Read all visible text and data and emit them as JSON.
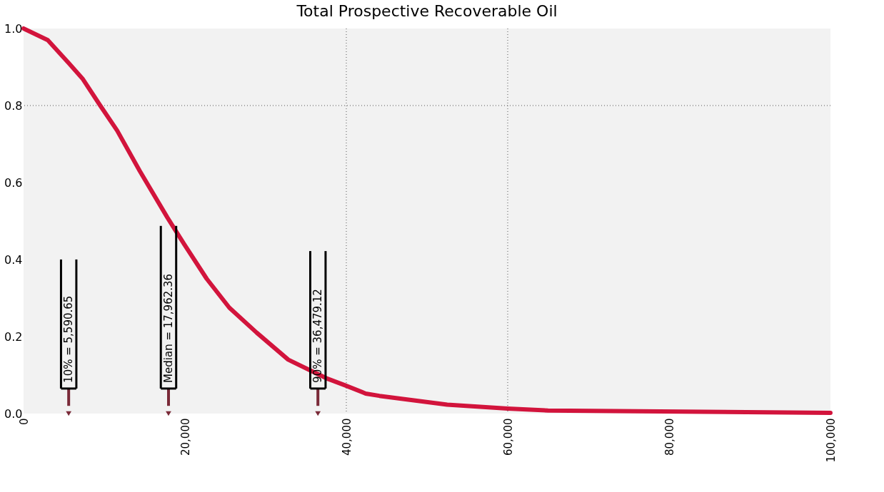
{
  "chart_data": {
    "type": "line",
    "title": "Total Prospective Recoverable Oil",
    "x": [
      0,
      3000,
      5600,
      7300,
      9500,
      11600,
      14400,
      17800,
      19900,
      22700,
      25500,
      28900,
      32800,
      37500,
      39900,
      42400,
      44100,
      52500,
      60000,
      65000,
      100000
    ],
    "series": [
      {
        "color": "#d2143c",
        "values": [
          1.0,
          0.97,
          0.91,
          0.87,
          0.8,
          0.735,
          0.63,
          0.51,
          0.44,
          0.35,
          0.275,
          0.21,
          0.14,
          0.092,
          0.073,
          0.052,
          0.046,
          0.023,
          0.013,
          0.008,
          0.002
        ]
      },
      {
        "type": "scatter",
        "marker": "triangle",
        "color": "#7a2a38",
        "x": [
          5590.65,
          17962.36,
          36479.12
        ],
        "values": [
          0,
          0,
          0
        ]
      }
    ],
    "xlim": [
      0,
      100000
    ],
    "ylim": [
      0,
      1
    ],
    "xticks": [
      {
        "value": 0,
        "label": "0"
      },
      {
        "value": 20000,
        "label": "20,000"
      },
      {
        "value": 40000,
        "label": "40,000"
      },
      {
        "value": 60000,
        "label": "60,000"
      },
      {
        "value": 80000,
        "label": "80,000"
      },
      {
        "value": 100000,
        "label": "100,000"
      }
    ],
    "yticks": [
      {
        "value": 0,
        "label": "0.0"
      },
      {
        "value": 0.2,
        "label": "0.2"
      },
      {
        "value": 0.4,
        "label": "0.4"
      },
      {
        "value": 0.6,
        "label": "0.6"
      },
      {
        "value": 0.8,
        "label": "0.8"
      },
      {
        "value": 1,
        "label": "1.0"
      }
    ],
    "ref_lines": [
      {
        "axis": "x",
        "value": 40000,
        "line_style": "dotted",
        "color": "#555555"
      },
      {
        "axis": "x",
        "value": 60000,
        "line_style": "dotted",
        "color": "#555555"
      },
      {
        "axis": "y",
        "value": 0.8,
        "line_style": "dotted",
        "color": "#555555"
      }
    ],
    "annotations": [
      {
        "text": "10% = 5,590.65",
        "x": 5590.65,
        "y": 0
      },
      {
        "text": "Median = 17,962.36",
        "x": 17962.36,
        "y": 0
      },
      {
        "text": "90% = 36,479.12",
        "x": 36479.12,
        "y": 0
      }
    ],
    "grid": false,
    "line_style": "solid"
  }
}
